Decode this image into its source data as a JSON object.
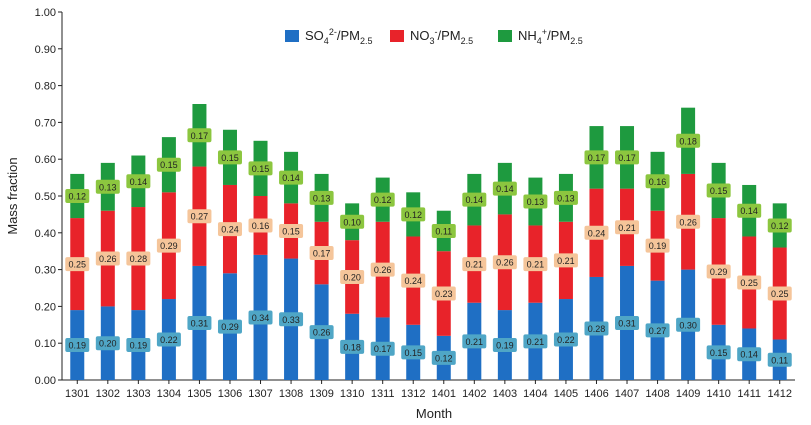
{
  "chart_data": {
    "type": "bar",
    "stacked": true,
    "xlabel": "Month",
    "ylabel": "Mass fraction",
    "ylim": [
      0,
      1.0
    ],
    "yticks": [
      "0.00",
      "0.10",
      "0.20",
      "0.30",
      "0.40",
      "0.50",
      "0.60",
      "0.70",
      "0.80",
      "0.90",
      "1.00"
    ],
    "grid": false,
    "legend_position": "top",
    "categories": [
      "1301",
      "1302",
      "1303",
      "1304",
      "1305",
      "1306",
      "1307",
      "1308",
      "1309",
      "1310",
      "1311",
      "1312",
      "1401",
      "1402",
      "1403",
      "1404",
      "1405",
      "1406",
      "1407",
      "1408",
      "1409",
      "1410",
      "1411",
      "1412"
    ],
    "series": [
      {
        "key": "so4",
        "legend": {
          "base": "SO",
          "sub": "4",
          "sup": "2-",
          "tail": "/PM",
          "tail_sub": "2.5"
        },
        "color": "#1f6fc4",
        "label_bg": "#4fa6c6",
        "values": [
          0.19,
          0.2,
          0.19,
          0.22,
          0.31,
          0.29,
          0.34,
          0.33,
          0.26,
          0.18,
          0.17,
          0.15,
          0.12,
          0.21,
          0.19,
          0.21,
          0.22,
          0.28,
          0.31,
          0.27,
          0.3,
          0.15,
          0.14,
          0.11
        ],
        "labels": [
          "0.19",
          "0.20",
          "0.19",
          "0.22",
          "0.31",
          "0.29",
          "0.34",
          "0.33",
          "0.26",
          "0.18",
          "0.17",
          "0.15",
          "0.12",
          "0.21",
          "0.19",
          "0.21",
          "0.22",
          "0.28",
          "0.31",
          "0.27",
          "0.30",
          "0.15",
          "0.14",
          "0.11"
        ]
      },
      {
        "key": "no3",
        "legend": {
          "base": "NO",
          "sub": "3",
          "sup": "-",
          "tail": "/PM",
          "tail_sub": "2.5"
        },
        "color": "#e8232a",
        "label_bg": "#f5c59a",
        "values": [
          0.25,
          0.26,
          0.28,
          0.29,
          0.27,
          0.24,
          0.16,
          0.15,
          0.17,
          0.2,
          0.26,
          0.24,
          0.23,
          0.21,
          0.26,
          0.21,
          0.21,
          0.24,
          0.21,
          0.19,
          0.26,
          0.29,
          0.25,
          0.25
        ],
        "labels": [
          "0.25",
          "0.26",
          "0.28",
          "0.29",
          "0.27",
          "0.24",
          "0.16",
          "0.15",
          "0.17",
          "0.20",
          "0.26",
          "0.24",
          "0.23",
          "0.21",
          "0.26",
          "0.21",
          "0.21",
          "0.24",
          "0.21",
          "0.19",
          "0.26",
          "0.29",
          "0.25",
          "0.25"
        ]
      },
      {
        "key": "nh4",
        "legend": {
          "base": "NH",
          "sub": "4",
          "sup": "+",
          "tail": "/PM",
          "tail_sub": "2.5"
        },
        "color": "#1e9a3f",
        "label_bg": "#8cc63f",
        "values": [
          0.12,
          0.13,
          0.14,
          0.15,
          0.17,
          0.15,
          0.15,
          0.14,
          0.13,
          0.1,
          0.12,
          0.12,
          0.11,
          0.14,
          0.14,
          0.13,
          0.13,
          0.17,
          0.17,
          0.16,
          0.18,
          0.15,
          0.14,
          0.12
        ],
        "labels": [
          "0.12",
          "0.13",
          "0.14",
          "0.15",
          "0.17",
          "0.15",
          "0.15",
          "0.14",
          "0.13",
          "0.10",
          "0.12",
          "0.12",
          "0.11",
          "0.14",
          "0.14",
          "0.13",
          "0.13",
          "0.17",
          "0.17",
          "0.16",
          "0.18",
          "0.15",
          "0.14",
          "0.12"
        ]
      }
    ]
  }
}
